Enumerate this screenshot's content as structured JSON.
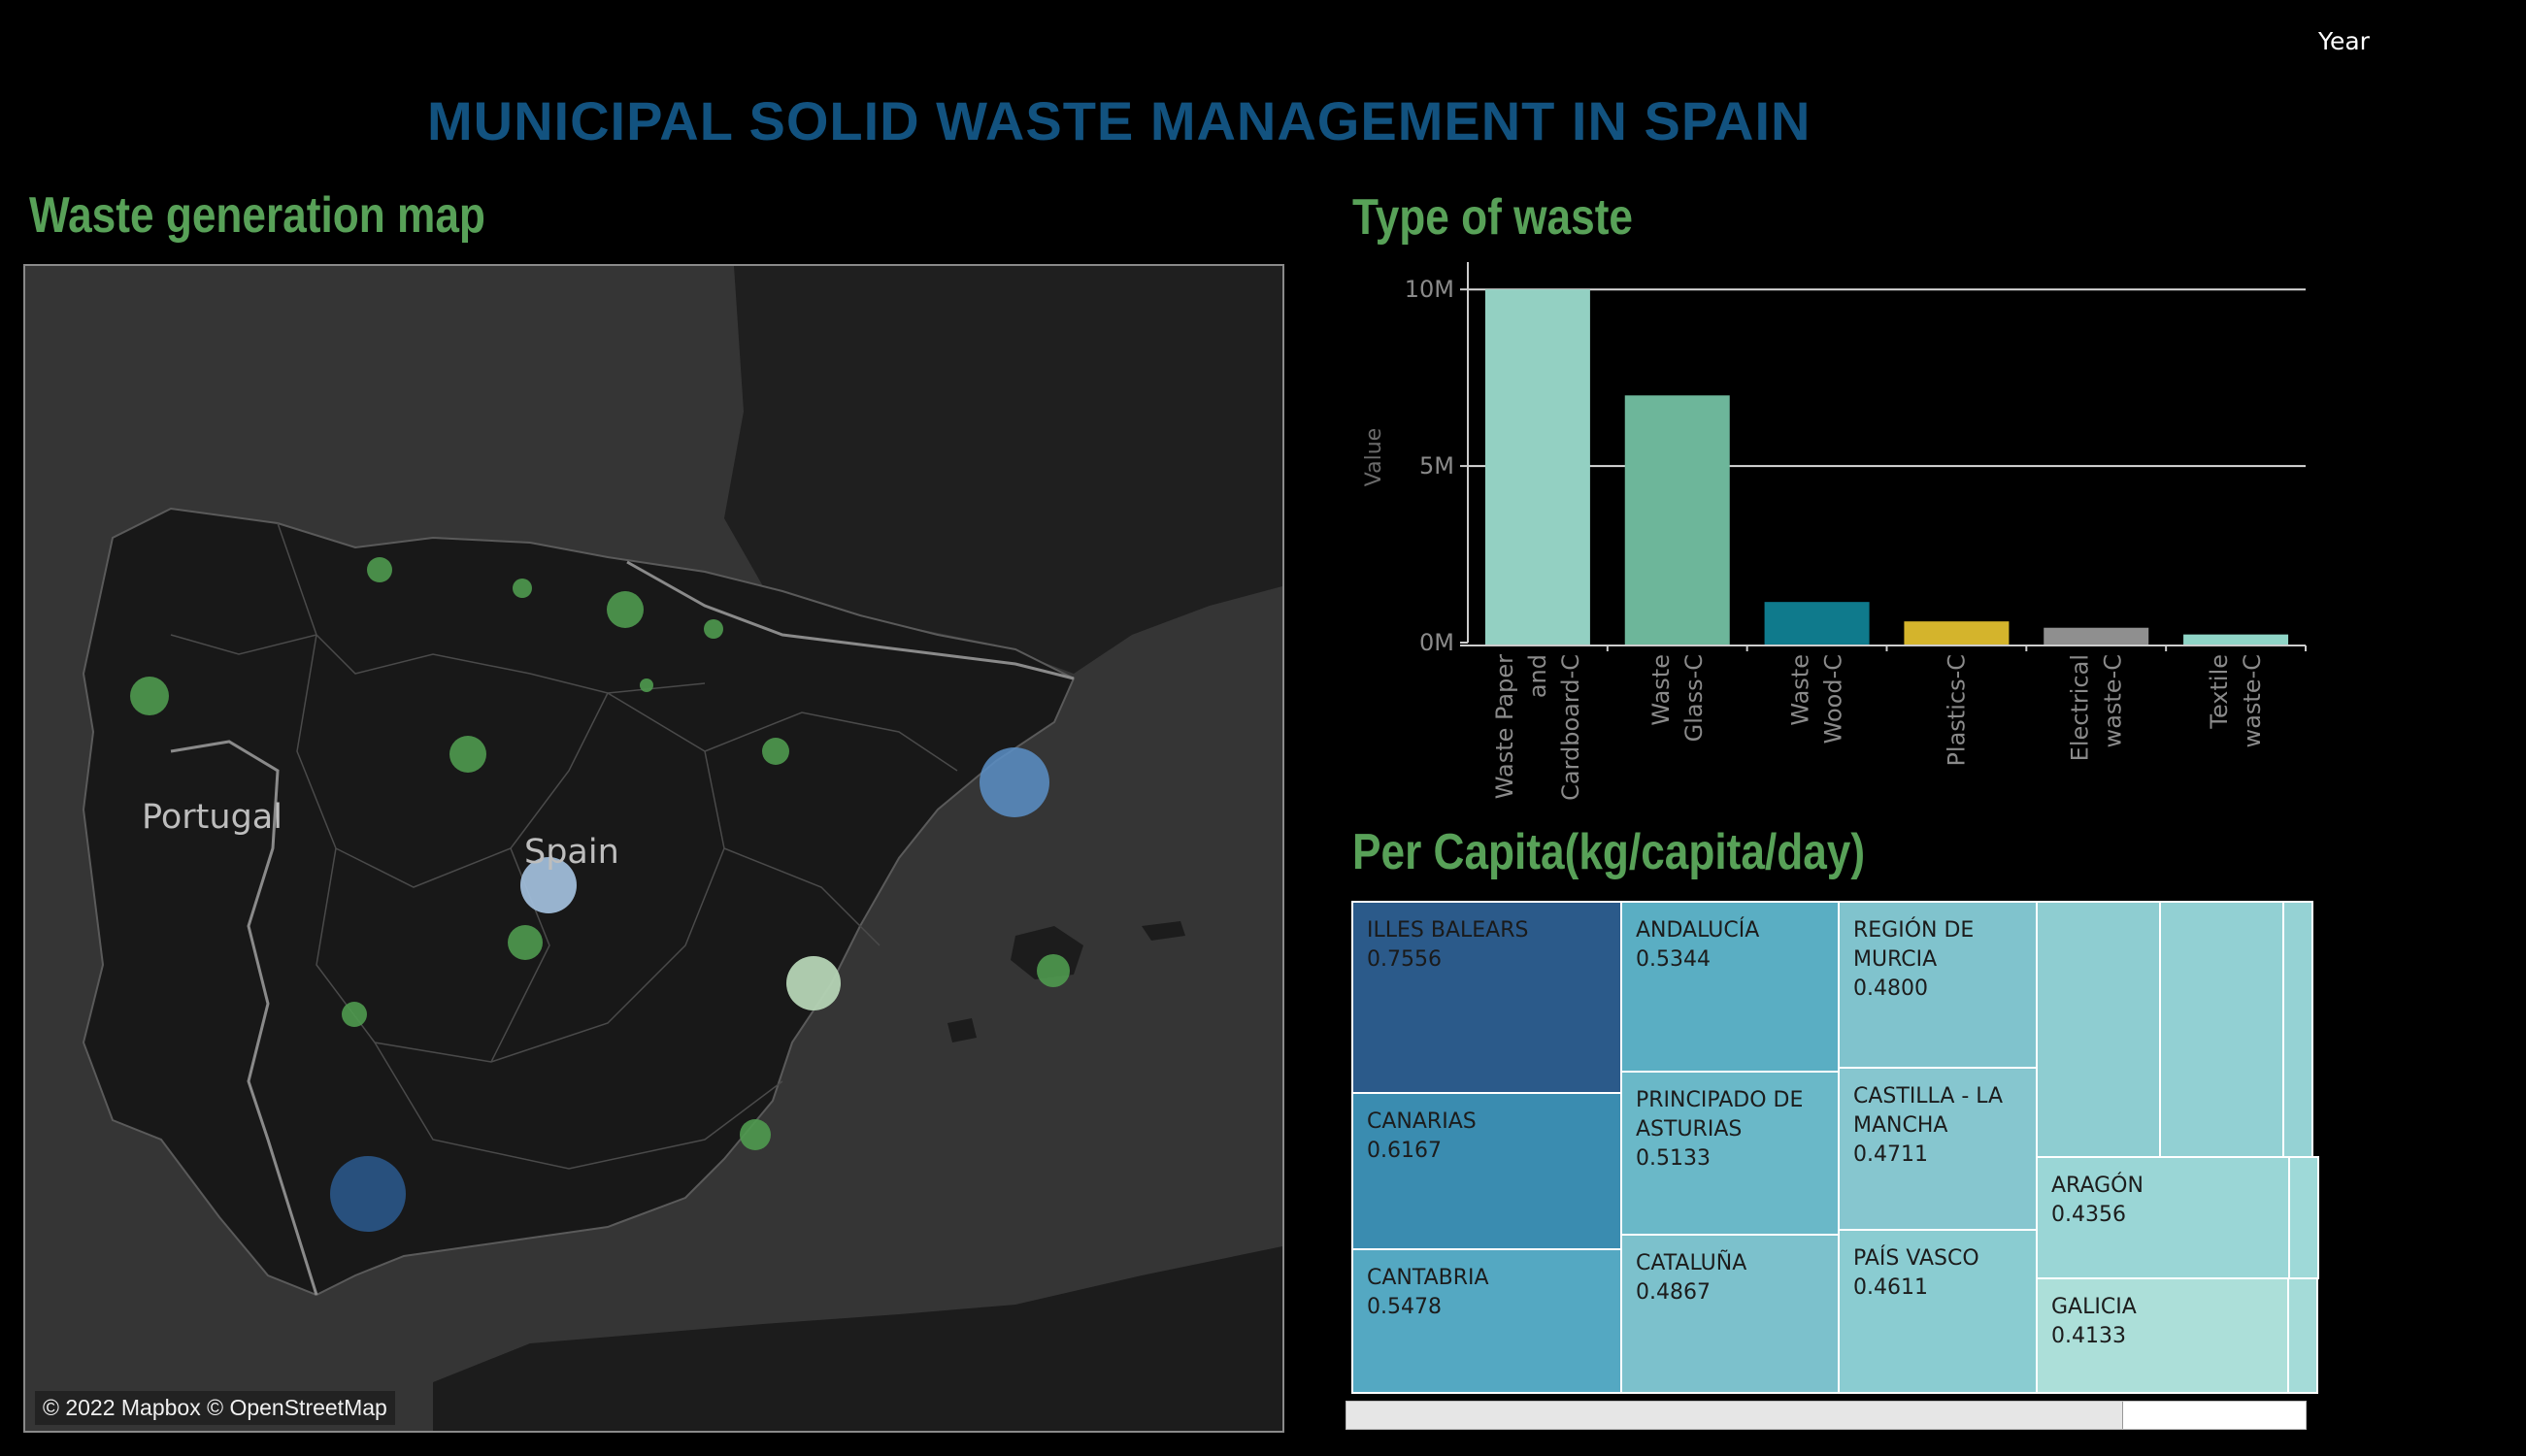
{
  "header": {
    "year_label": "Year",
    "title": "MUNICIPAL SOLID WASTE MANAGEMENT IN SPAIN"
  },
  "map_section": {
    "title": "Waste generation map",
    "labels": {
      "portugal": "Portugal",
      "spain": "Spain"
    },
    "attribution": "© 2022 Mapbox © OpenStreetMap"
  },
  "bar_section": {
    "title": "Type of waste"
  },
  "treemap_section": {
    "title": "Per Capita(kg/capita/day)"
  },
  "colors": {
    "title_blue": "#12527f",
    "section_green": "#58a158",
    "bubble_green": "#4f9a4f",
    "bubble_blue_dark": "#2b5a8f",
    "bubble_blue_mid": "#5b8fc7",
    "bubble_blue_light": "#9fbcd8",
    "bubble_light_green": "#b5d4b5"
  },
  "chart_data": [
    {
      "type": "bar",
      "title": "Type of waste",
      "ylabel": "Value",
      "xlabel": "",
      "ylim": [
        0,
        10500000
      ],
      "yticks": [
        {
          "value": 0,
          "label": "0M"
        },
        {
          "value": 5000000,
          "label": "5M"
        },
        {
          "value": 10000000,
          "label": "10M"
        }
      ],
      "grid": true,
      "categories": [
        "Waste Paper and Cardboard-C",
        "Waste Glass-C",
        "Waste Wood-C",
        "Plastics-C",
        "Electrical waste-C",
        "Textile waste-C"
      ],
      "category_label_lines": [
        [
          "Waste Paper",
          "and",
          "Cardboard-C"
        ],
        [
          "Waste",
          "Glass-C"
        ],
        [
          "Waste",
          "Wood-C"
        ],
        [
          "Plastics-C"
        ],
        [
          "Electrical",
          "waste-C"
        ],
        [
          "Textile",
          "waste-C"
        ]
      ],
      "values": [
        10000000,
        7000000,
        1150000,
        600000,
        420000,
        230000
      ],
      "colors": [
        "#93d0c2",
        "#6db69a",
        "#0f7a8c",
        "#d4b42c",
        "#8f8f8f",
        "#8fd4c6"
      ]
    },
    {
      "type": "heatmap",
      "subtype": "treemap",
      "title": "Per Capita(kg/capita/day)",
      "items": [
        {
          "label": "ILLES BALEARS",
          "value": "0.7556",
          "color": "#2b5a8a"
        },
        {
          "label": "CANARIAS",
          "value": "0.6167",
          "color": "#3a8cb0"
        },
        {
          "label": "CANTABRIA",
          "value": "0.5478",
          "color": "#54a8c2"
        },
        {
          "label": "ANDALUCÍA",
          "value": "0.5344",
          "color": "#5aaec3"
        },
        {
          "label": "PRINCIPADO DE ASTURIAS",
          "value": "0.5133",
          "color": "#6ab8c8"
        },
        {
          "label": "CATALUÑA",
          "value": "0.4867",
          "color": "#7cc1cc"
        },
        {
          "label": "REGIÓN DE MURCIA",
          "value": "0.4800",
          "color": "#80c3cd"
        },
        {
          "label": "CASTILLA - LA MANCHA",
          "value": "0.4711",
          "color": "#86c6cf"
        },
        {
          "label": "PAÍS VASCO",
          "value": "0.4611",
          "color": "#8accd1"
        },
        {
          "label": "",
          "value": "",
          "color": "#8ecdd1"
        },
        {
          "label": "",
          "value": "",
          "color": "#92d0d3"
        },
        {
          "label": "",
          "value": "",
          "color": "#95d2d4"
        },
        {
          "label": "ARAGÓN",
          "value": "0.4356",
          "color": "#9ad6d6"
        },
        {
          "label": "",
          "value": "",
          "color": "#9ed9d8"
        },
        {
          "label": "GALICIA",
          "value": "0.4133",
          "color": "#acdfd9"
        },
        {
          "label": "",
          "value": "",
          "color": "#a4dbd8"
        }
      ]
    }
  ]
}
